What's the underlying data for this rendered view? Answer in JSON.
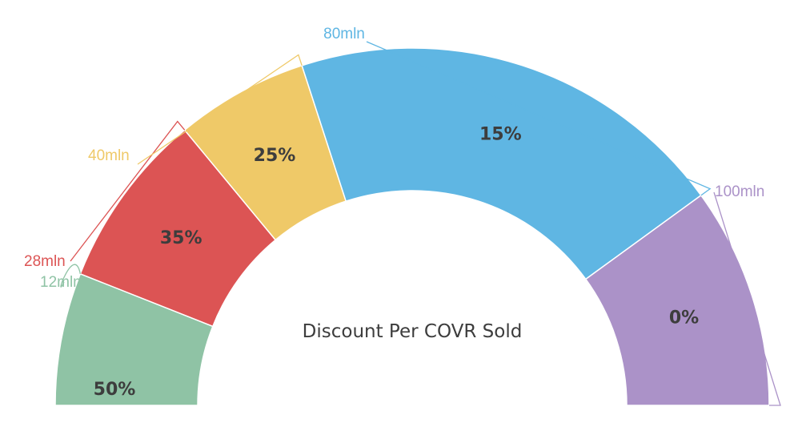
{
  "chart_data": {
    "type": "gauge",
    "title": "Discount Per COVR Sold",
    "scale": [
      0,
      100
    ],
    "units_suffix": "mln",
    "segments": [
      {
        "name": "50%",
        "to": 12,
        "tick_label": "12mln",
        "color": "#8FC3A5"
      },
      {
        "name": "35%",
        "to": 28,
        "tick_label": "28mln",
        "color": "#DC5454"
      },
      {
        "name": "25%",
        "to": 40,
        "tick_label": "40mln",
        "color": "#EFC968"
      },
      {
        "name": "15%",
        "to": 80,
        "tick_label": "80mln",
        "color": "#5FB6E3"
      },
      {
        "name": "0%",
        "to": 100,
        "tick_label": "100mln",
        "color": "#AB92C8"
      }
    ]
  }
}
